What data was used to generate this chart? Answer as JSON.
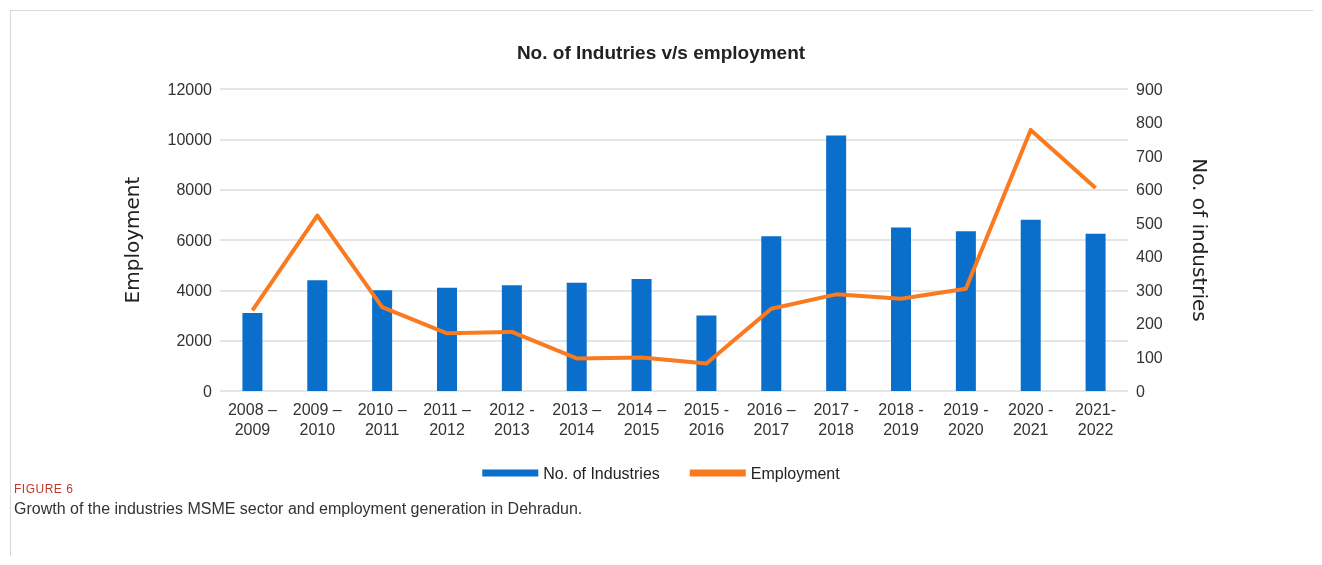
{
  "chart_data": {
    "type": "bar",
    "title": "No. of Indutries v/s employment",
    "categories": [
      "2008 –\n2009",
      "2009 –\n2010",
      "2010 –\n2011",
      "2011 –\n2012",
      "2012 -\n2013",
      "2013 –\n2014",
      "2014 –\n2015",
      "2015 -\n2016",
      "2016 –\n2017",
      "2017 -\n2018",
      "2018 -\n2019",
      "2019 -\n2020",
      "2020 -\n2021",
      "2021-\n2022"
    ],
    "series": [
      {
        "name": "No. of Industries",
        "color": "#0a6ecb",
        "values": [
          3100,
          4400,
          4000,
          4100,
          4200,
          4300,
          4450,
          3000,
          6150,
          10150,
          6500,
          6350,
          6800,
          6250
        ]
      },
      {
        "name": "Employment",
        "type": "line",
        "axis": "y2",
        "color": "#f97a1f",
        "values": [
          240,
          523,
          250,
          172,
          176,
          97,
          100,
          82,
          245,
          288,
          275,
          305,
          778,
          605
        ]
      }
    ],
    "ylabel": "Employment",
    "y2label": "No. of industries",
    "ylim": [
      0,
      12000
    ],
    "yticks": [
      0,
      2000,
      4000,
      6000,
      8000,
      10000,
      12000
    ],
    "y2lim": [
      0,
      900
    ],
    "y2ticks": [
      0,
      100,
      200,
      300,
      400,
      500,
      600,
      700,
      800,
      900
    ],
    "grid": "y",
    "legend": "bottom",
    "marker": "none",
    "line_style": "solid",
    "annotations": [
      "FIGURE 6",
      "Growth of the industries MSME sector and employment generation in Dehradun."
    ]
  }
}
